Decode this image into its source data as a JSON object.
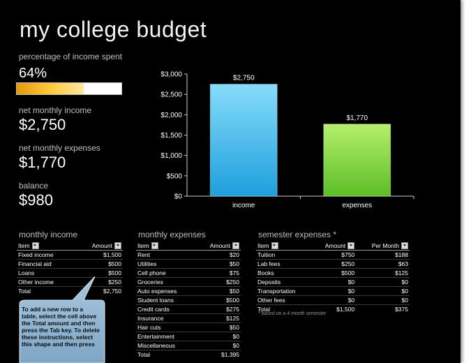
{
  "title": "my college budget",
  "summary": {
    "percent_label": "percentage of income spent",
    "percent_value": "64%",
    "percent_fraction": 0.64,
    "income_label": "net monthly income",
    "income_value": "$2,750",
    "expenses_label": "net monthly expenses",
    "expenses_value": "$1,770",
    "balance_label": "balance",
    "balance_value": "$980"
  },
  "chart_data": {
    "type": "bar",
    "categories": [
      "income",
      "expenses"
    ],
    "values": [
      2750,
      1770
    ],
    "data_labels": [
      "$2,750",
      "$1,770"
    ],
    "yticks": [
      "$0",
      "$500",
      "$1,000",
      "$1,500",
      "$2,000",
      "$2,500",
      "$3,000"
    ],
    "ylim": [
      0,
      3000
    ],
    "colors": [
      "#4cc2f0",
      "#8edc3e"
    ]
  },
  "income": {
    "heading": "monthly income",
    "headers": [
      "Item",
      "Amount"
    ],
    "rows": [
      [
        "Fixed income",
        "$1,500"
      ],
      [
        "Financial aid",
        "$500"
      ],
      [
        "Loans",
        "$500"
      ],
      [
        "Other income",
        "$250"
      ]
    ],
    "total_label": "Total",
    "total_value": "$2,750"
  },
  "expenses": {
    "heading": "monthly expenses",
    "headers": [
      "Item",
      "Amount"
    ],
    "rows": [
      [
        "Rent",
        "$20"
      ],
      [
        "Utilities",
        "$50"
      ],
      [
        "Cell phone",
        "$75"
      ],
      [
        "Groceries",
        "$250"
      ],
      [
        "Auto expenses",
        "$50"
      ],
      [
        "Student loans",
        "$500"
      ],
      [
        "Credit cards",
        "$275"
      ],
      [
        "Insurance",
        "$125"
      ],
      [
        "Hair cuts",
        "$50"
      ],
      [
        "Entertainment",
        "$0"
      ],
      [
        "Miscellaneous",
        "$0"
      ]
    ],
    "total_label": "Total",
    "total_value": "$1,395"
  },
  "semester": {
    "heading": "semester expenses *",
    "headers": [
      "Item",
      "Amount",
      "Per Month"
    ],
    "rows": [
      [
        "Tuition",
        "$750",
        "$188"
      ],
      [
        "Lab fees",
        "$250",
        "$63"
      ],
      [
        "Books",
        "$500",
        "$125"
      ],
      [
        "Deposits",
        "$0",
        "$0"
      ],
      [
        "Transportation",
        "$0",
        "$0"
      ],
      [
        "Other fees",
        "$0",
        "$0"
      ]
    ],
    "total_label": "Total",
    "total_value": "$1,500",
    "total_per_month": "$375",
    "note": "* based on a 4 month semester"
  },
  "callout": {
    "text": "To add a new row to a table, select the cell above the Total amount and then press the Tab key. To delete these instructions, select this shape and then press"
  }
}
